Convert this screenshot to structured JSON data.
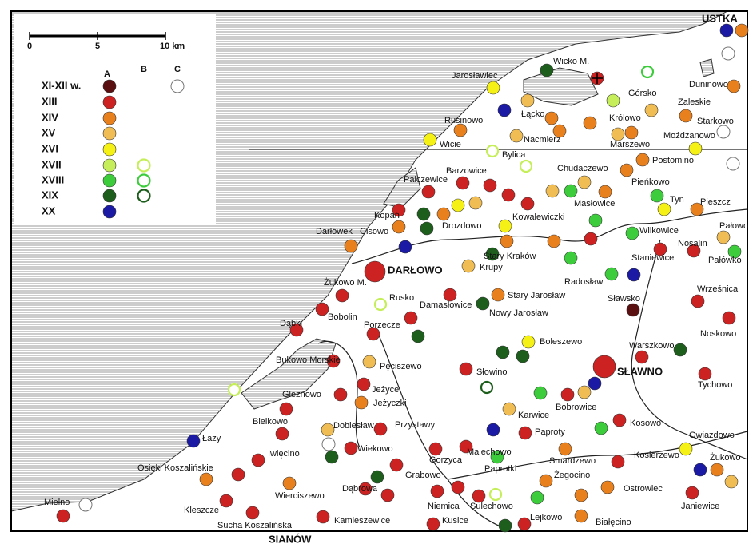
{
  "scale": [
    "0",
    "5",
    "10 km"
  ],
  "legend": {
    "headers": [
      "A",
      "B",
      "C"
    ],
    "rows": [
      {
        "label": "XI-XII w.",
        "color": "#5a1010",
        "columns": [
          "A",
          "C"
        ]
      },
      {
        "label": "XIII",
        "color": "#cc2222",
        "columns": [
          "A"
        ]
      },
      {
        "label": "XIV",
        "color": "#e8801e",
        "columns": [
          "A"
        ]
      },
      {
        "label": "XV",
        "color": "#f0bd55",
        "columns": [
          "A"
        ]
      },
      {
        "label": "XVI",
        "color": "#f5f015",
        "columns": [
          "A"
        ]
      },
      {
        "label": "XVII",
        "color": "#c5ee5a",
        "columns": [
          "A",
          "B"
        ]
      },
      {
        "label": "XVIII",
        "color": "#3ccc3c",
        "columns": [
          "A",
          "B"
        ]
      },
      {
        "label": "XIX",
        "color": "#1d5e1d",
        "columns": [
          "A",
          "B"
        ]
      },
      {
        "label": "XX",
        "color": "#1a1aa5",
        "columns": [
          "A"
        ]
      }
    ]
  },
  "markers": [
    [
      "XX",
      "A"
    ],
    [
      "XIV",
      "A"
    ],
    [
      "XI-XII w.",
      "C"
    ],
    [
      "XIV",
      "A"
    ],
    [
      "XIV",
      "A"
    ],
    [
      "XI-XII w.",
      "C"
    ],
    [
      "XVI",
      "A"
    ],
    [
      "XI-XII w.",
      "C"
    ],
    [
      "XVII",
      "A"
    ],
    [
      "XV",
      "A"
    ],
    [
      "XIV",
      "A"
    ],
    [
      "XIV",
      "A"
    ],
    [
      "XV",
      "A"
    ],
    [
      "XIX",
      "A"
    ],
    [
      "XIII",
      "A"
    ],
    [
      "XVIII",
      "B"
    ],
    [
      "XVI",
      "A"
    ],
    [
      "XV",
      "A"
    ],
    [
      "XX",
      "A"
    ],
    [
      "XIV",
      "A"
    ],
    [
      "XIV",
      "A"
    ],
    [
      "XV",
      "A"
    ],
    [
      "XIV",
      "A"
    ],
    [
      "XVI",
      "A"
    ],
    [
      "XVII",
      "B"
    ],
    [
      "XVII",
      "B"
    ],
    [
      "XIV",
      "A"
    ],
    [
      "XIV",
      "A"
    ],
    [
      "XV",
      "A"
    ],
    [
      "XVIII",
      "A"
    ],
    [
      "XVI",
      "A"
    ],
    [
      "XIV",
      "A"
    ],
    [
      "XVIII",
      "A"
    ],
    [
      "XV",
      "A"
    ],
    [
      "XIV",
      "A"
    ],
    [
      "XIII",
      "A"
    ],
    [
      "XIII",
      "A"
    ],
    [
      "XIII",
      "A"
    ],
    [
      "XIII",
      "A"
    ],
    [
      "XIII",
      "A"
    ],
    [
      "XVI",
      "A"
    ],
    [
      "XV",
      "A"
    ],
    [
      "XIV",
      "A"
    ],
    [
      "XIII",
      "A"
    ],
    [
      "XIX",
      "A"
    ],
    [
      "XIV",
      "A"
    ],
    [
      "XIX",
      "A"
    ],
    [
      "XX",
      "A"
    ],
    [
      "XVI",
      "A"
    ],
    [
      "XIV",
      "A"
    ],
    [
      "XIV",
      "A"
    ],
    [
      "XIII",
      "A"
    ],
    [
      "XVIII",
      "A"
    ],
    [
      "XVIII",
      "A"
    ],
    [
      "XV",
      "A"
    ],
    [
      "XIII",
      "A"
    ],
    [
      "XVIII",
      "A"
    ],
    [
      "XIV",
      "A"
    ],
    [
      "XIII",
      "A"
    ],
    [
      "XIX",
      "A"
    ],
    [
      "XVIII",
      "A"
    ],
    [
      "XV",
      "A"
    ],
    [
      "XIII",
      "A"
    ],
    [
      "XVIII",
      "A"
    ],
    [
      "XX",
      "A"
    ],
    [
      "XIII",
      "A"
    ],
    [
      "XVII",
      "B"
    ],
    [
      "XIII",
      "A"
    ],
    [
      "XIV",
      "A"
    ],
    [
      "XIX",
      "A"
    ],
    [
      "XI-XII w.",
      "A"
    ],
    [
      "XIII",
      "A"
    ],
    [
      "XIII",
      "A"
    ],
    [
      "XIII",
      "A"
    ],
    [
      "XIII",
      "A"
    ],
    [
      "XIX",
      "A"
    ],
    [
      "XIII",
      "A"
    ],
    [
      "XIII",
      "A"
    ],
    [
      "XVI",
      "A"
    ],
    [
      "XIX",
      "A"
    ],
    [
      "XIX",
      "A"
    ],
    [
      "XIII",
      "A"
    ],
    [
      "XIX",
      "A"
    ],
    [
      "XIII",
      "A"
    ],
    [
      "XV",
      "A"
    ],
    [
      "XIII",
      "A"
    ],
    [
      "XIX",
      "B"
    ],
    [
      "XIII",
      "A"
    ],
    [
      "XX",
      "A"
    ],
    [
      "XIII",
      "A"
    ],
    [
      "XIII",
      "A"
    ],
    [
      "XIV",
      "A"
    ],
    [
      "XIII",
      "A"
    ],
    [
      "XVII",
      "B"
    ],
    [
      "XVIII",
      "A"
    ],
    [
      "XIII",
      "A"
    ],
    [
      "XV",
      "A"
    ],
    [
      "XV",
      "A"
    ],
    [
      "XIII",
      "A"
    ],
    [
      "XIII",
      "A"
    ],
    [
      "XVIII",
      "A"
    ],
    [
      "XV",
      "A"
    ],
    [
      "XI-XII w.",
      "C"
    ],
    [
      "XIII",
      "A"
    ],
    [
      "XIII",
      "A"
    ],
    [
      "XX",
      "A"
    ],
    [
      "XVI",
      "A"
    ],
    [
      "XX",
      "A"
    ],
    [
      "XIII",
      "A"
    ],
    [
      "XIII",
      "A"
    ],
    [
      "XIII",
      "A"
    ],
    [
      "XIX",
      "A"
    ],
    [
      "XIII",
      "A"
    ],
    [
      "XIII",
      "A"
    ],
    [
      "XIII",
      "A"
    ],
    [
      "XVIII",
      "A"
    ],
    [
      "XIV",
      "A"
    ],
    [
      "XIII",
      "A"
    ],
    [
      "XX",
      "A"
    ],
    [
      "XIV",
      "A"
    ],
    [
      "XV",
      "A"
    ],
    [
      "XIX",
      "A"
    ],
    [
      "XIII",
      "A"
    ],
    [
      "XIV",
      "A"
    ],
    [
      "XIV",
      "A"
    ],
    [
      "XIV",
      "A"
    ],
    [
      "XIV",
      "A"
    ],
    [
      "XIII",
      "A"
    ],
    [
      "XIII",
      "A"
    ],
    [
      "XIII",
      "A"
    ],
    [
      "XIII",
      "A"
    ],
    [
      "XIII",
      "A"
    ],
    [
      "XIII",
      "A"
    ],
    [
      "XVII",
      "B"
    ],
    [
      "XIII",
      "A"
    ],
    [
      "XI-XII w.",
      "C"
    ],
    [
      "XIII",
      "A"
    ],
    [
      "XIII",
      "A"
    ],
    [
      "XIII",
      "A"
    ],
    [
      "XIII",
      "A"
    ],
    [
      "XVIII",
      "A"
    ],
    [
      "XIX",
      "A"
    ],
    [
      "XIII",
      "A"
    ],
    [
      "XIV",
      "A"
    ],
    [
      "XIV",
      "A"
    ]
  ],
  "places": [
    "USTKA",
    "Duninowo",
    "Zaleskie",
    "Starkowo",
    "Moźdżanowo",
    "Górsko",
    "Królowo",
    "Marszewo",
    "Wicko M.",
    "Jarosławiec",
    "Łącko",
    "Nacmierz",
    "Rusinowo",
    "Wicie",
    "Bylica",
    "Postomino",
    "Chudaczewo",
    "Pieńkowo",
    "Tyn",
    "Pieszcz",
    "Masłowice",
    "Palczewice",
    "Barzowice",
    "Drozdowo",
    "Kopań",
    "Cisowo",
    "Kowalewiczki",
    "Wilkowice",
    "Pałowo",
    "Nosalin",
    "Pałówko",
    "Darłówek",
    "DARŁOWO",
    "Stary Kraków",
    "Krupy",
    "Staniewice",
    "Radosław",
    "Żukowo M.",
    "Rusko",
    "Damasłowice",
    "Stary Jarosław",
    "Nowy Jarosław",
    "Sławsko",
    "Wrześnica",
    "Bobolin",
    "Porzecze",
    "Dąbki",
    "Noskowo",
    "Boleszewo",
    "Warszkowo",
    "Bukowo Morskie",
    "Pęciszewo",
    "Słowino",
    "SŁAWNO",
    "Tychowo",
    "Jeżyce",
    "Jeżyczki",
    "Gleżnowo",
    "Bobrowice",
    "Karwice",
    "Bielkowo",
    "Kosowo",
    "Dobiesław",
    "Przystawy",
    "Paproty",
    "Gwiazdowo",
    "Łazy",
    "Iwięcino",
    "Wiekowo",
    "Malechowo",
    "Gorzyca",
    "Paprotki",
    "Smardzewo",
    "Kosierzewo",
    "Żukowo",
    "Grabowo",
    "Osieki Koszalińskie",
    "Żegocino",
    "Ostrowiec",
    "Wierciszewo",
    "Dąbrowa",
    "Kleszcze",
    "Niemica",
    "Sulechowo",
    "Janiewice",
    "Mielno",
    "Sucha Koszalińska",
    "Kamieszewice",
    "Kusice",
    "Lejkowo",
    "Białęcino",
    "SIANÓW"
  ]
}
